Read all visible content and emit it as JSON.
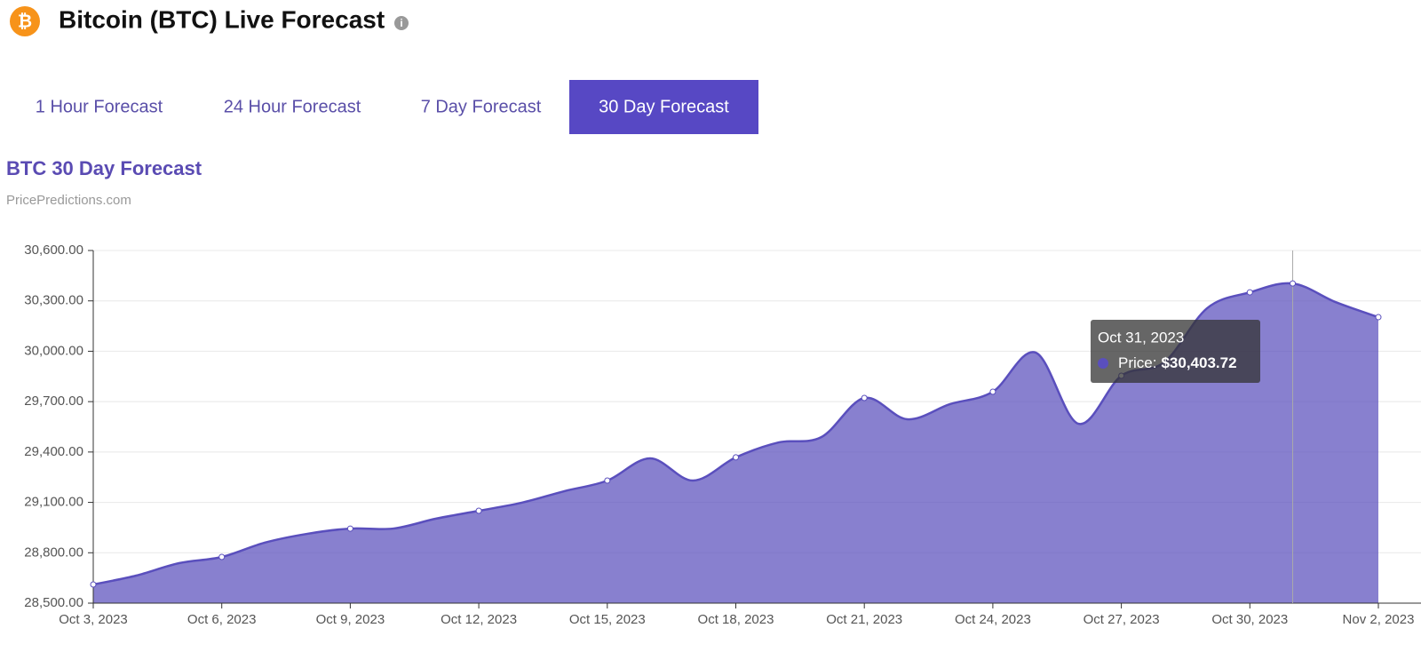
{
  "header": {
    "title": "Bitcoin (BTC) Live Forecast"
  },
  "tabs": {
    "items": [
      "1 Hour Forecast",
      "24 Hour Forecast",
      "7 Day Forecast",
      "30 Day Forecast"
    ],
    "active": 3
  },
  "chart_data": {
    "type": "area",
    "title": "BTC 30 Day Forecast",
    "subtitle": "PricePredictions.com",
    "categories": [
      "Oct 3, 2023",
      null,
      null,
      "Oct 6, 2023",
      null,
      null,
      "Oct 9, 2023",
      null,
      null,
      "Oct 12, 2023",
      null,
      null,
      "Oct 15, 2023",
      null,
      null,
      "Oct 18, 2023",
      null,
      null,
      "Oct 21, 2023",
      null,
      null,
      "Oct 24, 2023",
      null,
      null,
      "Oct 27, 2023",
      null,
      null,
      "Oct 30, 2023",
      null,
      null,
      "Nov 2, 2023"
    ],
    "values": [
      28611,
      28664,
      28738,
      28775,
      28860,
      28913,
      28944,
      28944,
      29003,
      29050,
      29098,
      29167,
      29230,
      29362,
      29230,
      29368,
      29457,
      29489,
      29722,
      29595,
      29685,
      29759,
      29992,
      29568,
      29854,
      29934,
      30256,
      30351,
      30403.72,
      30293,
      30203
    ],
    "color": "#5a4fbd",
    "ylim": [
      28500,
      30600
    ],
    "yticks": [
      {
        "value": 28500,
        "label": "28,500.00"
      },
      {
        "value": 28800,
        "label": "28,800.00"
      },
      {
        "value": 29100,
        "label": "29,100.00"
      },
      {
        "value": 29400,
        "label": "29,400.00"
      },
      {
        "value": 29700,
        "label": "29,700.00"
      },
      {
        "value": 30000,
        "label": "30,000.00"
      },
      {
        "value": 30300,
        "label": "30,300.00"
      },
      {
        "value": 30600,
        "label": "30,600.00"
      }
    ],
    "grid": true,
    "tooltip": {
      "index": 28,
      "date": "Oct 31, 2023",
      "label": "Price:",
      "value": "$30,403.72"
    }
  }
}
